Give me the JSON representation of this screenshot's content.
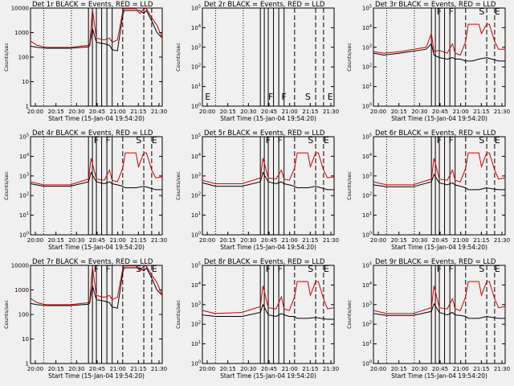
{
  "chart_data": [
    {
      "type": "line",
      "title": "Det 1r  BLACK = Events, RED = LLD",
      "ylabel": "Counts/sec",
      "xlabel": "Start Time (15-Jan-04 19:54:20)",
      "ylim": [
        1,
        10000
      ],
      "yticks": [
        "1",
        "10",
        "100",
        "1000",
        "10000"
      ],
      "xticks": [
        "20:00",
        "20:15",
        "20:30",
        "20:45",
        "21:00",
        "21:15",
        "21:30"
      ],
      "markers": [],
      "series": [
        {
          "name": "Events",
          "color": "#000000",
          "x": [
            0,
            0.05,
            0.12,
            0.3,
            0.44,
            0.45,
            0.47,
            0.5,
            0.56,
            0.6,
            0.62,
            0.66,
            0.7,
            0.71,
            0.8,
            0.83,
            0.86,
            0.88,
            0.92,
            0.96,
            1.0
          ],
          "y": [
            280,
            250,
            230,
            230,
            260,
            300,
            1500,
            400,
            350,
            300,
            200,
            180,
            5000,
            8000,
            8000,
            8000,
            6000,
            8000,
            3000,
            1000,
            600
          ]
        },
        {
          "name": "LLD",
          "color": "#d00000",
          "x": [
            0,
            0.05,
            0.12,
            0.3,
            0.44,
            0.45,
            0.47,
            0.5,
            0.56,
            0.6,
            0.62,
            0.66,
            0.7,
            0.71,
            0.8,
            0.83,
            0.86,
            0.88,
            0.92,
            0.96,
            1.0
          ],
          "y": [
            450,
            300,
            250,
            250,
            300,
            350,
            9000,
            600,
            500,
            600,
            400,
            500,
            7000,
            9500,
            9500,
            6000,
            9500,
            9500,
            4000,
            2000,
            600
          ]
        }
      ]
    },
    {
      "type": "line",
      "title": "Det 2r  BLACK = Events, RED = LLD",
      "ylabel": "Counts/sec",
      "xlabel": "Start Time (15-Jan-04 19:54:20)",
      "ylim": [
        1,
        100000
      ],
      "yticks": [
        "10^0",
        "10^1",
        "10^2",
        "10^3",
        "10^4",
        "10^5"
      ],
      "xticks": [
        "20:00",
        "20:15",
        "20:30",
        "20:45",
        "21:00",
        "21:15",
        "21:30"
      ],
      "markers": [
        "E",
        "F",
        "F",
        "S",
        "E"
      ],
      "series": []
    },
    {
      "type": "line",
      "title": "Det 3r  BLACK = Events, RED = LLD",
      "ylabel": "Counts/sec",
      "xlabel": "Start Time (15-Jan-04 19:54:20)",
      "ylim": [
        1,
        100000
      ],
      "yticks": [
        "10^0",
        "10^1",
        "10^2",
        "10^3",
        "10^4",
        "10^5"
      ],
      "xticks": [
        "20:00",
        "20:15",
        "20:30",
        "20:45",
        "21:00",
        "21:15",
        "21:30"
      ],
      "markers": [
        "F",
        "F",
        "S",
        "E"
      ],
      "series": [
        {
          "name": "Events",
          "color": "#000000",
          "x": [
            0,
            0.08,
            0.2,
            0.4,
            0.44,
            0.46,
            0.5,
            0.56,
            0.6,
            0.62,
            0.66,
            0.7,
            0.75,
            0.8,
            0.86,
            0.9,
            0.95,
            1.0
          ],
          "y": [
            500,
            400,
            500,
            800,
            1500,
            400,
            300,
            250,
            300,
            250,
            250,
            200,
            200,
            250,
            300,
            250,
            200,
            200
          ]
        },
        {
          "name": "LLD",
          "color": "#d00000",
          "x": [
            0,
            0.08,
            0.2,
            0.4,
            0.44,
            0.46,
            0.5,
            0.56,
            0.6,
            0.62,
            0.66,
            0.7,
            0.72,
            0.8,
            0.82,
            0.86,
            0.88,
            0.92,
            0.95,
            1.0
          ],
          "y": [
            600,
            500,
            600,
            1000,
            5000,
            600,
            700,
            500,
            1500,
            500,
            400,
            2000,
            15000,
            15000,
            5000,
            15000,
            15000,
            2000,
            800,
            800
          ]
        }
      ]
    },
    {
      "type": "line",
      "title": "Det 4r  BLACK = Events, RED = LLD",
      "ylabel": "Counts/sec",
      "xlabel": "Start Time (15-Jan-04 19:54:20)",
      "ylim": [
        1,
        100000
      ],
      "yticks": [
        "10^0",
        "10^1",
        "10^2",
        "10^3",
        "10^4",
        "10^5"
      ],
      "xticks": [
        "20:00",
        "20:15",
        "20:30",
        "20:45",
        "21:00",
        "21:15",
        "21:30"
      ],
      "markers": [
        "F",
        "F",
        "S",
        "E"
      ],
      "series": [
        {
          "name": "Events",
          "color": "#000000",
          "x": [
            0,
            0.1,
            0.3,
            0.44,
            0.46,
            0.5,
            0.56,
            0.6,
            0.62,
            0.66,
            0.7,
            0.72,
            0.8,
            0.86,
            0.9,
            0.95,
            1.0
          ],
          "y": [
            400,
            300,
            300,
            500,
            1500,
            500,
            400,
            500,
            400,
            350,
            300,
            250,
            250,
            300,
            250,
            200,
            200
          ]
        },
        {
          "name": "LLD",
          "color": "#d00000",
          "x": [
            0,
            0.1,
            0.3,
            0.44,
            0.46,
            0.5,
            0.56,
            0.6,
            0.62,
            0.66,
            0.7,
            0.72,
            0.8,
            0.82,
            0.86,
            0.88,
            0.92,
            0.95,
            1.0
          ],
          "y": [
            500,
            350,
            350,
            700,
            8000,
            700,
            600,
            2000,
            600,
            500,
            2500,
            15000,
            15000,
            3000,
            15000,
            15000,
            2000,
            800,
            900
          ]
        }
      ]
    },
    {
      "type": "line",
      "title": "Det 5r  BLACK = Events, RED = LLD",
      "ylabel": "Counts/sec",
      "xlabel": "Start Time (15-Jan-04 19:54:20)",
      "ylim": [
        1,
        100000
      ],
      "yticks": [
        "10^0",
        "10^1",
        "10^2",
        "10^3",
        "10^4",
        "10^5"
      ],
      "xticks": [
        "20:00",
        "20:15",
        "20:30",
        "20:45",
        "21:00",
        "21:15",
        "21:30"
      ],
      "markers": [
        "F",
        "F",
        "S",
        "E"
      ],
      "series": [
        {
          "name": "Events",
          "color": "#000000",
          "x": [
            0,
            0.1,
            0.3,
            0.44,
            0.46,
            0.5,
            0.56,
            0.6,
            0.62,
            0.66,
            0.7,
            0.72,
            0.8,
            0.86,
            0.9,
            0.95,
            1.0
          ],
          "y": [
            450,
            300,
            300,
            500,
            1500,
            500,
            400,
            500,
            400,
            350,
            300,
            250,
            250,
            300,
            250,
            200,
            200
          ]
        },
        {
          "name": "LLD",
          "color": "#d00000",
          "x": [
            0,
            0.1,
            0.3,
            0.44,
            0.46,
            0.5,
            0.56,
            0.6,
            0.62,
            0.66,
            0.7,
            0.72,
            0.8,
            0.82,
            0.86,
            0.88,
            0.92,
            0.95,
            1.0
          ],
          "y": [
            600,
            400,
            400,
            800,
            8000,
            800,
            700,
            2000,
            700,
            600,
            2500,
            15000,
            15000,
            3000,
            15000,
            15000,
            2000,
            800,
            900
          ]
        }
      ]
    },
    {
      "type": "line",
      "title": "Det 6r  BLACK = Events, RED = LLD",
      "ylabel": "Counts/sec",
      "xlabel": "Start Time (15-Jan-04 19:54:20)",
      "ylim": [
        1,
        100000
      ],
      "yticks": [
        "10^0",
        "10^1",
        "10^2",
        "10^3",
        "10^4",
        "10^5"
      ],
      "xticks": [
        "20:00",
        "20:15",
        "20:30",
        "20:45",
        "21:00",
        "21:15",
        "21:30"
      ],
      "markers": [
        "F",
        "F",
        "S",
        "E"
      ],
      "series": [
        {
          "name": "Events",
          "color": "#000000",
          "x": [
            0,
            0.1,
            0.3,
            0.44,
            0.46,
            0.5,
            0.56,
            0.6,
            0.62,
            0.66,
            0.7,
            0.72,
            0.8,
            0.86,
            0.9,
            0.95,
            1.0
          ],
          "y": [
            350,
            280,
            280,
            500,
            1200,
            450,
            350,
            450,
            350,
            300,
            250,
            200,
            200,
            250,
            220,
            200,
            200
          ]
        },
        {
          "name": "LLD",
          "color": "#d00000",
          "x": [
            0,
            0.1,
            0.3,
            0.44,
            0.46,
            0.5,
            0.56,
            0.6,
            0.62,
            0.66,
            0.7,
            0.72,
            0.8,
            0.82,
            0.86,
            0.88,
            0.92,
            0.95,
            1.0
          ],
          "y": [
            500,
            350,
            350,
            700,
            8000,
            700,
            600,
            2000,
            600,
            500,
            2500,
            15000,
            15000,
            3000,
            15000,
            15000,
            2000,
            700,
            800
          ]
        }
      ]
    },
    {
      "type": "line",
      "title": "Det 7r  BLACK = Events, RED = LLD",
      "ylabel": "Counts/sec",
      "xlabel": "Start Time (15-Jan-04 19:54:20)",
      "ylim": [
        1,
        10000
      ],
      "yticks": [
        "1",
        "10",
        "100",
        "1000",
        "10000"
      ],
      "xticks": [
        "20:00",
        "20:15",
        "20:30",
        "20:45",
        "21:00",
        "21:15",
        "21:30"
      ],
      "markers": [
        "F",
        "F",
        "S",
        "E"
      ],
      "series": [
        {
          "name": "Events",
          "color": "#000000",
          "x": [
            0,
            0.05,
            0.12,
            0.3,
            0.44,
            0.45,
            0.47,
            0.5,
            0.56,
            0.6,
            0.62,
            0.66,
            0.7,
            0.71,
            0.8,
            0.83,
            0.86,
            0.88,
            0.92,
            0.96,
            1.0
          ],
          "y": [
            280,
            250,
            230,
            230,
            260,
            300,
            1500,
            400,
            350,
            300,
            200,
            180,
            5000,
            8000,
            8000,
            8000,
            6000,
            8000,
            3000,
            1000,
            600
          ]
        },
        {
          "name": "LLD",
          "color": "#d00000",
          "x": [
            0,
            0.05,
            0.12,
            0.3,
            0.44,
            0.45,
            0.47,
            0.5,
            0.56,
            0.6,
            0.62,
            0.66,
            0.7,
            0.71,
            0.8,
            0.83,
            0.86,
            0.88,
            0.92,
            0.96,
            1.0
          ],
          "y": [
            450,
            300,
            250,
            250,
            300,
            350,
            9000,
            600,
            500,
            600,
            400,
            500,
            7000,
            9500,
            9500,
            6000,
            9500,
            9500,
            4000,
            2000,
            600
          ]
        }
      ]
    },
    {
      "type": "line",
      "title": "Det 8r  BLACK = Events, RED = LLD",
      "ylabel": "Counts/sec",
      "xlabel": "Start Time (15-Jan-04 19:54:20)",
      "ylim": [
        1,
        100000
      ],
      "yticks": [
        "10^0",
        "10^1",
        "10^2",
        "10^3",
        "10^4",
        "10^5"
      ],
      "xticks": [
        "20:00",
        "20:15",
        "20:30",
        "20:45",
        "21:00",
        "21:15",
        "21:30"
      ],
      "markers": [
        "F",
        "F",
        "S",
        "E"
      ],
      "series": [
        {
          "name": "Events",
          "color": "#000000",
          "x": [
            0,
            0.1,
            0.3,
            0.44,
            0.46,
            0.5,
            0.56,
            0.6,
            0.62,
            0.66,
            0.7,
            0.72,
            0.8,
            0.86,
            0.9,
            0.95,
            1.0
          ],
          "y": [
            300,
            250,
            250,
            400,
            1000,
            300,
            250,
            350,
            300,
            250,
            250,
            200,
            200,
            220,
            200,
            180,
            180
          ]
        },
        {
          "name": "LLD",
          "color": "#d00000",
          "x": [
            0,
            0.1,
            0.3,
            0.44,
            0.46,
            0.5,
            0.56,
            0.6,
            0.62,
            0.66,
            0.7,
            0.72,
            0.8,
            0.82,
            0.86,
            0.88,
            0.92,
            0.95,
            1.0
          ],
          "y": [
            500,
            350,
            400,
            800,
            9000,
            700,
            600,
            2500,
            600,
            500,
            2500,
            15000,
            15000,
            3000,
            15000,
            15000,
            2000,
            600,
            700
          ]
        }
      ]
    },
    {
      "type": "line",
      "title": "Det 9r  BLACK = Events, RED = LLD",
      "ylabel": "Counts/sec",
      "xlabel": "Start Time (15-Jan-04 19:54:20)",
      "ylim": [
        1,
        100000
      ],
      "yticks": [
        "10^0",
        "10^1",
        "10^2",
        "10^3",
        "10^4",
        "10^5"
      ],
      "xticks": [
        "20:00",
        "20:15",
        "20:30",
        "20:45",
        "21:00",
        "21:15",
        "21:30"
      ],
      "markers": [
        "F",
        "F",
        "S",
        "E"
      ],
      "series": [
        {
          "name": "Events",
          "color": "#000000",
          "x": [
            0,
            0.1,
            0.3,
            0.44,
            0.46,
            0.5,
            0.56,
            0.6,
            0.62,
            0.66,
            0.7,
            0.72,
            0.8,
            0.86,
            0.9,
            0.95,
            1.0
          ],
          "y": [
            350,
            280,
            280,
            450,
            1100,
            400,
            300,
            400,
            300,
            280,
            250,
            200,
            200,
            250,
            220,
            200,
            200
          ]
        },
        {
          "name": "LLD",
          "color": "#d00000",
          "x": [
            0,
            0.1,
            0.3,
            0.44,
            0.46,
            0.5,
            0.56,
            0.6,
            0.62,
            0.66,
            0.7,
            0.72,
            0.8,
            0.82,
            0.86,
            0.88,
            0.92,
            0.95,
            1.0
          ],
          "y": [
            500,
            350,
            350,
            700,
            9000,
            700,
            600,
            2000,
            600,
            500,
            2500,
            15000,
            15000,
            3000,
            15000,
            15000,
            2000,
            700,
            800
          ]
        }
      ]
    }
  ]
}
